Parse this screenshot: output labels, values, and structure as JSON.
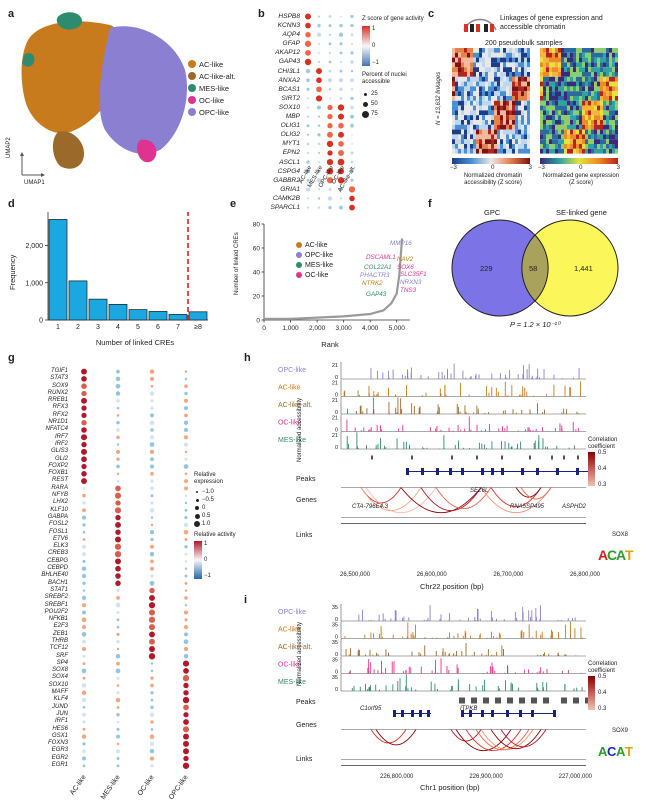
{
  "panels": {
    "a": {
      "label": "a",
      "axis_x": "UMAP1",
      "axis_y": "UMAP2",
      "legend": [
        {
          "name": "AC-like",
          "color": "#c77b1d"
        },
        {
          "name": "AC-like-alt.",
          "color": "#9b6a2b"
        },
        {
          "name": "MES-like",
          "color": "#2e8b6e"
        },
        {
          "name": "OC-like",
          "color": "#e0338f"
        },
        {
          "name": "OPC-like",
          "color": "#8a7fd0"
        }
      ]
    },
    "b": {
      "label": "b",
      "genes": [
        "HSPB8",
        "KCNN3",
        "AQP4",
        "GFAP",
        "AKAP12",
        "GAP43",
        "CHI3L1",
        "ANXA2",
        "BCAS1",
        "SIRT2",
        "SOX10",
        "MBP",
        "OLIG1",
        "OLIG2",
        "MYT1",
        "EPN2",
        "ASCL1",
        "CSPG4",
        "GABBR2",
        "GRIA1",
        "CAMK2B",
        "SPARCL1"
      ],
      "columns": [
        "AC-like",
        "MES-like",
        "OPC-like",
        "OC-like",
        "AC-like-alt."
      ],
      "legend_z_title": "Z score of gene activity",
      "legend_z_ticks": [
        "1",
        "0",
        "−1"
      ],
      "legend_pct_title": "Percent of nuclei accessible",
      "legend_pct_ticks": [
        "25",
        "50",
        "75"
      ]
    },
    "c": {
      "label": "c",
      "title": "Linkages of gene expression and accessible chromatin",
      "subtitle": "200 pseudobulk samples",
      "ylabel": "N = 13,632 linkages",
      "left_ticks": [
        "−3",
        "0",
        "3"
      ],
      "right_ticks": [
        "−3",
        "0",
        "3"
      ],
      "left_caption": "Normalized chromatin accessibility (Z score)",
      "right_caption": "Normalized gene expression (Z score)"
    },
    "d": {
      "label": "d",
      "xlabel": "Number of linked CREs",
      "ylabel": "Frequency",
      "yticks": [
        "0",
        "1,000",
        "2,000"
      ]
    },
    "e": {
      "label": "e",
      "xlabel": "Rank",
      "ylabel": "Number of linked CREs",
      "xticks": [
        "0",
        "1,000",
        "2,000",
        "3,000",
        "4,000",
        "5,000"
      ],
      "yticks": [
        "0",
        "20",
        "40",
        "60",
        "80"
      ],
      "legend": [
        {
          "name": "AC-like",
          "color": "#c77b1d"
        },
        {
          "name": "OPC-like",
          "color": "#8a7fd0"
        },
        {
          "name": "MES-like",
          "color": "#2e8b6e"
        },
        {
          "name": "OC-like",
          "color": "#e0338f"
        }
      ],
      "annotations": [
        {
          "text": "MMP16",
          "color": "#8a7fd0"
        },
        {
          "text": "DSCAML1",
          "color": "#e0338f"
        },
        {
          "text": "NAV2",
          "color": "#c77b1d"
        },
        {
          "text": "COL22A1",
          "color": "#2e8b6e"
        },
        {
          "text": "SOX6",
          "color": "#e0338f"
        },
        {
          "text": "PHACTR3",
          "color": "#8a7fd0"
        },
        {
          "text": "SLC35F1",
          "color": "#e0338f"
        },
        {
          "text": "NTRK2",
          "color": "#c77b1d"
        },
        {
          "text": "NRXN3",
          "color": "#8a7fd0"
        },
        {
          "text": "TNS3",
          "color": "#e0338f"
        },
        {
          "text": "GAP43",
          "color": "#2e8b6e"
        }
      ]
    },
    "f": {
      "label": "f",
      "left_title": "GPC",
      "right_title": "SE-linked gene",
      "left_value": "229",
      "overlap_value": "58",
      "right_value": "1,441",
      "pvalue": "P = 1.2 × 10⁻¹⁰"
    },
    "g": {
      "label": "g",
      "tfs": [
        "TGIF1",
        "STAT3",
        "SOX9",
        "RUNX2",
        "RREB1",
        "RFX3",
        "RFX2",
        "NR1D1",
        "NFATC4",
        "IRF7",
        "IRF2",
        "GLIS3",
        "GLI2",
        "FOXP2",
        "FOXB1",
        "REST",
        "RARA",
        "NFYB",
        "LHX2",
        "KLF10",
        "GABPA",
        "FOSL2",
        "FOSL1",
        "ETV6",
        "ELK3",
        "CREB3",
        "CEBPG",
        "CEBPD",
        "BHLHE40",
        "BACH1",
        "STAT1",
        "SREBF2",
        "SREBF1",
        "POU2F2",
        "NFKB1",
        "E2F3",
        "ZEB1",
        "THRB",
        "TCF12",
        "SRF",
        "SP4",
        "SOX8",
        "SOX4",
        "SOX10",
        "MAFF",
        "KLF4",
        "JUND",
        "JUN",
        "IRF1",
        "HES6",
        "GSX1",
        "FOXN3",
        "EGR3",
        "EGR2",
        "EGR1"
      ],
      "columns": [
        "AC-like",
        "MES-like",
        "OC-like",
        "OPC-like"
      ],
      "legend_expr_title": "Relative expression",
      "legend_expr_ticks": [
        "−1.0",
        "−0.5",
        "0",
        "0.5",
        "1.0"
      ],
      "legend_act_title": "Relative activity",
      "legend_act_ticks": [
        "1",
        "0",
        "−1"
      ]
    },
    "h": {
      "label": "h",
      "tracks": [
        {
          "name": "OPC-like",
          "color": "#8a7fd0"
        },
        {
          "name": "AC-like",
          "color": "#c77b1d"
        },
        {
          "name": "AC-like-alt.",
          "color": "#9b6a2b"
        },
        {
          "name": "OC-like",
          "color": "#e0338f"
        },
        {
          "name": "MES-like",
          "color": "#2e8b6e"
        }
      ],
      "ymax": "21",
      "ymin": "0",
      "ylabel": "Normalized accessibility",
      "row_peaks": "Peaks",
      "row_genes": "Genes",
      "row_links": "Links",
      "genes": [
        "SEZ6L",
        "CTA-796E4.3",
        "RNA5SP495",
        "ASPHD2"
      ],
      "xticks": [
        "26,500,000",
        "26,600,000",
        "26,700,000",
        "26,800,000"
      ],
      "xlabel": "Chr22 position (bp)",
      "corr_title": "Correlation coefficient",
      "corr_ticks": [
        "0.5",
        "0.4",
        "0.3"
      ],
      "motif": "SOX8"
    },
    "i": {
      "label": "i",
      "tracks": [
        {
          "name": "OPC-like",
          "color": "#8a7fd0"
        },
        {
          "name": "AC-like",
          "color": "#c77b1d"
        },
        {
          "name": "AC-like-alt.",
          "color": "#9b6a2b"
        },
        {
          "name": "OC-like",
          "color": "#e0338f"
        },
        {
          "name": "MES-like",
          "color": "#2e8b6e"
        }
      ],
      "ymax": "35",
      "ymin": "0",
      "ylabel": "Normalized accessibility",
      "row_peaks": "Peaks",
      "row_genes": "Genes",
      "row_links": "Links",
      "genes": [
        "C1orf95",
        "ITPKB"
      ],
      "xticks": [
        "226,800,000",
        "226,900,000",
        "227,000,000"
      ],
      "xlabel": "Chr1 position (bp)",
      "corr_title": "Correlation coefficient",
      "corr_ticks": [
        "0.5",
        "0.4",
        "0.3"
      ],
      "motif": "SOX9"
    }
  },
  "chart_data": [
    {
      "type": "bar",
      "panel": "d",
      "categories": [
        "1",
        "2",
        "3",
        "4",
        "5",
        "6",
        "7",
        "≥8"
      ],
      "values": [
        2700,
        1050,
        560,
        420,
        280,
        230,
        150,
        220
      ],
      "xlabel": "Number of linked CREs",
      "ylabel": "Frequency",
      "ylim": [
        0,
        2900
      ],
      "threshold_x": "7.5",
      "bar_color": "#1ba8e0"
    },
    {
      "type": "line",
      "panel": "e",
      "x": [
        0,
        1000,
        2000,
        3000,
        4000,
        4500,
        4800,
        5000,
        5100,
        5200
      ],
      "y": [
        1,
        1,
        2,
        3,
        5,
        8,
        14,
        22,
        38,
        68
      ],
      "xlabel": "Rank",
      "ylabel": "Number of linked CREs",
      "xlim": [
        0,
        5500
      ],
      "ylim": [
        0,
        80
      ]
    }
  ]
}
